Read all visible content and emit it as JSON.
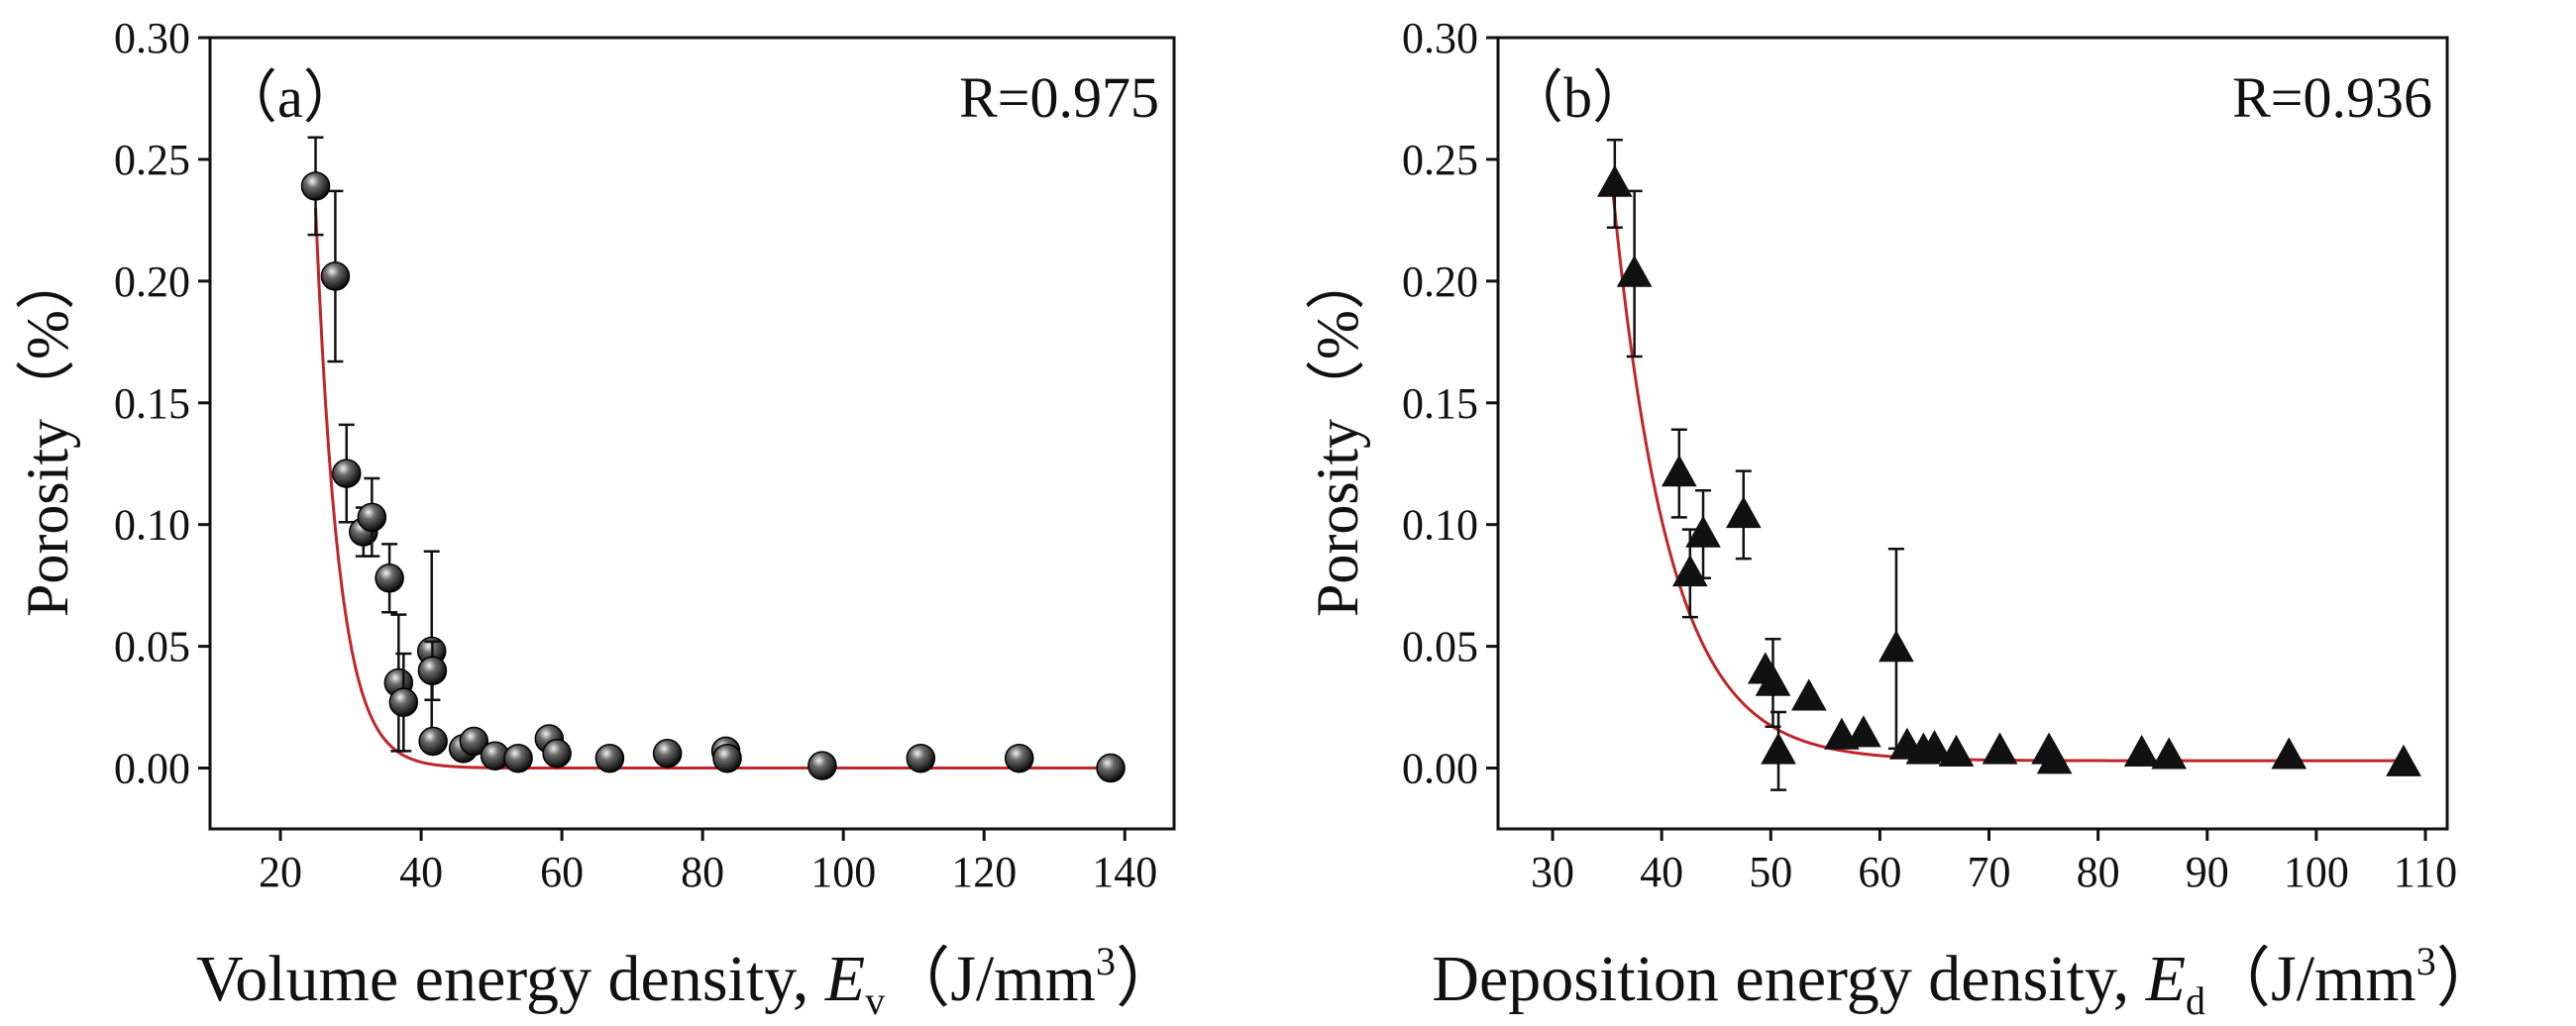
{
  "colors": {
    "axis": "#111111",
    "fit": "#c0262a",
    "marker": "#111111"
  },
  "chart_data": [
    {
      "type": "scatter",
      "panel_label": "（a）",
      "r_text": "R=0.975",
      "ylabel": "Porosity（%）",
      "xlabel_prefix": "Volume energy density, ",
      "xlabel_symbol": "E",
      "xlabel_sub": "v",
      "xlabel_unit": "（J/mm",
      "xlabel_sup": "3",
      "xlabel_close": "）",
      "marker": "circle",
      "xlim": [
        10,
        147
      ],
      "ylim": [
        -0.025,
        0.3
      ],
      "xticks": [
        20,
        40,
        60,
        80,
        100,
        120,
        140
      ],
      "yticks": [
        0.0,
        0.05,
        0.1,
        0.15,
        0.2,
        0.25,
        0.3
      ],
      "fit": {
        "model": "exponential decay",
        "a": 0.23,
        "x0": 25,
        "t": 3.3,
        "c": 0.0,
        "x_range": [
          25,
          138
        ]
      },
      "points": [
        {
          "x": 25.0,
          "y": 0.239,
          "err": 0.02
        },
        {
          "x": 27.8,
          "y": 0.202,
          "err": 0.035
        },
        {
          "x": 29.4,
          "y": 0.121,
          "err": 0.02
        },
        {
          "x": 31.8,
          "y": 0.097,
          "err": 0.01
        },
        {
          "x": 33.0,
          "y": 0.103,
          "err": 0.016
        },
        {
          "x": 35.5,
          "y": 0.078,
          "err": 0.014
        },
        {
          "x": 36.8,
          "y": 0.035,
          "err": 0.028
        },
        {
          "x": 37.5,
          "y": 0.027,
          "err": 0.02
        },
        {
          "x": 41.5,
          "y": 0.048,
          "err": 0.041
        },
        {
          "x": 41.6,
          "y": 0.04,
          "err": 0.012
        },
        {
          "x": 41.7,
          "y": 0.011,
          "err": 0.0
        },
        {
          "x": 46.0,
          "y": 0.008,
          "err": 0.0
        },
        {
          "x": 47.5,
          "y": 0.011,
          "err": 0.0
        },
        {
          "x": 50.5,
          "y": 0.005,
          "err": 0.0
        },
        {
          "x": 53.8,
          "y": 0.004,
          "err": 0.0
        },
        {
          "x": 58.2,
          "y": 0.012,
          "err": 0.0
        },
        {
          "x": 59.3,
          "y": 0.006,
          "err": 0.0
        },
        {
          "x": 66.8,
          "y": 0.004,
          "err": 0.0
        },
        {
          "x": 75.0,
          "y": 0.006,
          "err": 0.0
        },
        {
          "x": 83.3,
          "y": 0.007,
          "err": 0.0
        },
        {
          "x": 83.5,
          "y": 0.004,
          "err": 0.0
        },
        {
          "x": 97.0,
          "y": 0.001,
          "err": 0.0
        },
        {
          "x": 111.0,
          "y": 0.004,
          "err": 0.0
        },
        {
          "x": 125.0,
          "y": 0.004,
          "err": 0.0
        },
        {
          "x": 138.0,
          "y": 0.0,
          "err": 0.0
        }
      ]
    },
    {
      "type": "scatter",
      "panel_label": "（b）",
      "r_text": "R=0.936",
      "ylabel": "Porosity（%）",
      "xlabel_prefix": "Deposition energy density, ",
      "xlabel_symbol": "E",
      "xlabel_sub": "d",
      "xlabel_unit": "（J/mm",
      "xlabel_sup": "3",
      "xlabel_close": "）",
      "marker": "triangle",
      "xlim": [
        25,
        112
      ],
      "ylim": [
        -0.025,
        0.3
      ],
      "xticks": [
        30,
        40,
        50,
        60,
        70,
        80,
        90,
        100,
        110
      ],
      "yticks": [
        0.0,
        0.05,
        0.1,
        0.15,
        0.2,
        0.25,
        0.3
      ],
      "fit": {
        "model": "exponential decay",
        "a": 0.235,
        "x0": 35.5,
        "t": 5.2,
        "c": 0.003,
        "x_range": [
          35.5,
          108.5
        ]
      },
      "points": [
        {
          "x": 35.7,
          "y": 0.24,
          "err": 0.018
        },
        {
          "x": 37.5,
          "y": 0.203,
          "err": 0.034
        },
        {
          "x": 41.6,
          "y": 0.121,
          "err": 0.018
        },
        {
          "x": 42.6,
          "y": 0.08,
          "err": 0.018
        },
        {
          "x": 43.8,
          "y": 0.096,
          "err": 0.018
        },
        {
          "x": 47.5,
          "y": 0.104,
          "err": 0.018
        },
        {
          "x": 49.5,
          "y": 0.04,
          "err": 0.0
        },
        {
          "x": 50.2,
          "y": 0.035,
          "err": 0.018
        },
        {
          "x": 50.7,
          "y": 0.007,
          "err": 0.016
        },
        {
          "x": 53.5,
          "y": 0.029,
          "err": 0.0
        },
        {
          "x": 56.5,
          "y": 0.013,
          "err": 0.0
        },
        {
          "x": 58.5,
          "y": 0.014,
          "err": 0.0
        },
        {
          "x": 61.5,
          "y": 0.049,
          "err": 0.041
        },
        {
          "x": 62.5,
          "y": 0.009,
          "err": 0.0
        },
        {
          "x": 64.0,
          "y": 0.007,
          "err": 0.0
        },
        {
          "x": 65.0,
          "y": 0.008,
          "err": 0.0
        },
        {
          "x": 67.0,
          "y": 0.006,
          "err": 0.0
        },
        {
          "x": 71.0,
          "y": 0.007,
          "err": 0.0
        },
        {
          "x": 75.5,
          "y": 0.007,
          "err": 0.0
        },
        {
          "x": 76.0,
          "y": 0.003,
          "err": 0.0
        },
        {
          "x": 84.0,
          "y": 0.006,
          "err": 0.0
        },
        {
          "x": 86.5,
          "y": 0.005,
          "err": 0.0
        },
        {
          "x": 97.5,
          "y": 0.005,
          "err": 0.0
        },
        {
          "x": 108.0,
          "y": 0.002,
          "err": 0.0
        }
      ]
    }
  ]
}
